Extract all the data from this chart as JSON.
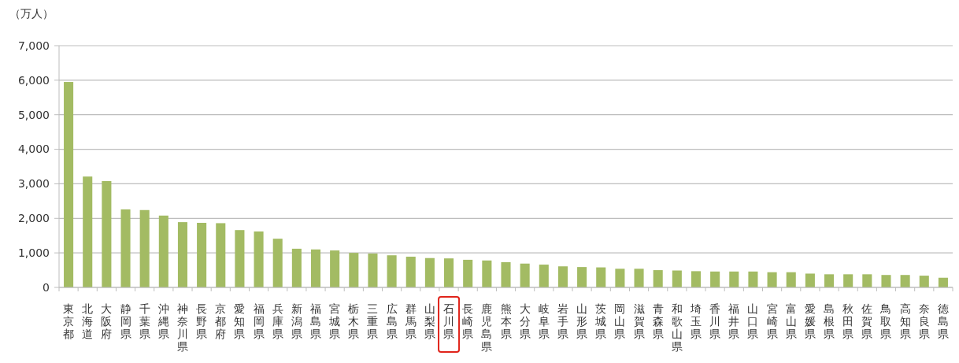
{
  "chart_data": {
    "type": "bar",
    "ylabel": "（万人）",
    "categories": [
      "東京都",
      "北海道",
      "大阪府",
      "静岡県",
      "千葉県",
      "沖縄県",
      "神奈川県",
      "長野県",
      "京都府",
      "愛知県",
      "福岡県",
      "兵庫県",
      "新潟県",
      "福島県",
      "宮城県",
      "栃木県",
      "三重県",
      "広島県",
      "群馬県",
      "山梨県",
      "石川県",
      "長崎県",
      "鹿児島県",
      "熊本県",
      "大分県",
      "岐阜県",
      "岩手県",
      "山形県",
      "茨城県",
      "岡山県",
      "滋賀県",
      "青森県",
      "和歌山県",
      "埼玉県",
      "香川県",
      "福井県",
      "山口県",
      "宮崎県",
      "富山県",
      "愛媛県",
      "島根県",
      "秋田県",
      "佐賀県",
      "鳥取県",
      "高知県",
      "奈良県",
      "徳島県"
    ],
    "values": [
      5950,
      3210,
      3080,
      2260,
      2240,
      2080,
      1890,
      1870,
      1860,
      1660,
      1620,
      1410,
      1120,
      1100,
      1070,
      1000,
      980,
      930,
      890,
      850,
      840,
      800,
      780,
      730,
      690,
      660,
      610,
      590,
      580,
      540,
      540,
      500,
      490,
      470,
      460,
      460,
      460,
      440,
      440,
      400,
      380,
      380,
      380,
      360,
      360,
      340,
      280
    ],
    "color": "#a3bb63",
    "ylim": [
      0,
      7000
    ],
    "yticks": [
      0,
      {
        "value": 1000,
        "label": "1,000"
      },
      {
        "value": 2000,
        "label": "2,000"
      },
      {
        "value": 3000,
        "label": "3,000"
      },
      {
        "value": 4000,
        "label": "4,000"
      },
      {
        "value": 5000,
        "label": "5,000"
      },
      {
        "value": 6000,
        "label": "6,000"
      },
      {
        "value": 7000,
        "label": "7,000"
      }
    ],
    "grid": "y"
  }
}
